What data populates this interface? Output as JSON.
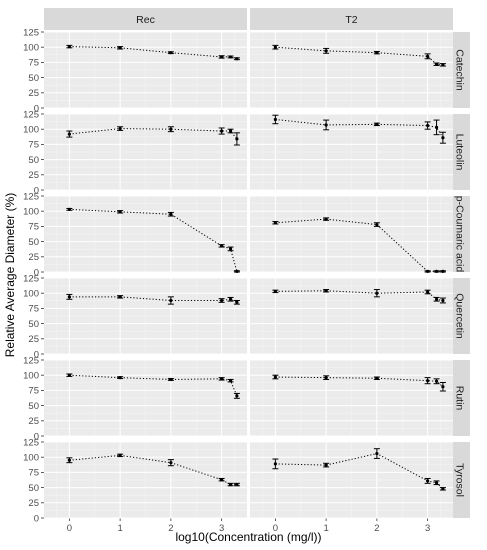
{
  "chart_data": {
    "type": "line",
    "xlabel": "log10(Concentration (mg/l))",
    "ylabel": "Relative Average Diameter (%)",
    "x_ticks": [
      0,
      1,
      2,
      3
    ],
    "y_ticks": [
      0,
      25,
      50,
      75,
      100,
      125
    ],
    "xlim": [
      -0.5,
      3.5
    ],
    "ylim": [
      0,
      125
    ],
    "grid": true,
    "columns": [
      "Rec",
      "T2"
    ],
    "rows": [
      "Catechin",
      "Luteolin",
      "p-Coumaric acid",
      "Quercetin",
      "Rutin",
      "Tyrosol"
    ],
    "x": [
      0,
      1,
      2,
      3,
      3.176,
      3.301
    ],
    "panels": [
      {
        "row": "Catechin",
        "col": "Rec",
        "y": [
          101,
          99,
          91,
          84,
          84,
          81
        ],
        "err": [
          2,
          2,
          1.5,
          2,
          1.5,
          1.5
        ]
      },
      {
        "row": "Catechin",
        "col": "T2",
        "y": [
          100,
          94,
          91,
          85,
          72,
          71
        ],
        "err": [
          3,
          4,
          2,
          4,
          2,
          2
        ]
      },
      {
        "row": "Luteolin",
        "col": "Rec",
        "y": [
          92,
          101,
          100,
          97,
          97,
          84
        ],
        "err": [
          5,
          3,
          4,
          5,
          3,
          10
        ]
      },
      {
        "row": "Luteolin",
        "col": "T2",
        "y": [
          116,
          107,
          108,
          106,
          103,
          86
        ],
        "err": [
          7,
          8,
          2,
          6,
          12,
          9
        ]
      },
      {
        "row": "p-Coumaric acid",
        "col": "Rec",
        "y": [
          103,
          99,
          95,
          43,
          38,
          1
        ],
        "err": [
          1.5,
          2,
          3,
          2,
          3,
          1
        ]
      },
      {
        "row": "p-Coumaric acid",
        "col": "T2",
        "y": [
          81,
          87,
          78,
          1,
          1,
          1
        ],
        "err": [
          2,
          2,
          3,
          1,
          1,
          1
        ]
      },
      {
        "row": "Quercetin",
        "col": "Rec",
        "y": [
          94,
          94,
          88,
          88,
          90,
          85
        ],
        "err": [
          4,
          2,
          6,
          3,
          3,
          3
        ]
      },
      {
        "row": "Quercetin",
        "col": "T2",
        "y": [
          103,
          104,
          100,
          102,
          90,
          88
        ],
        "err": [
          2,
          2,
          6,
          3,
          3,
          4
        ]
      },
      {
        "row": "Rutin",
        "col": "Rec",
        "y": [
          100,
          96,
          93,
          94,
          91,
          66
        ],
        "err": [
          2,
          1.5,
          1.5,
          2,
          2,
          4
        ]
      },
      {
        "row": "Rutin",
        "col": "T2",
        "y": [
          97,
          96,
          95,
          91,
          90,
          81
        ],
        "err": [
          3,
          3,
          2,
          5,
          4,
          7
        ]
      },
      {
        "row": "Tyrosol",
        "col": "Rec",
        "y": [
          95,
          103,
          91,
          63,
          55,
          55
        ],
        "err": [
          4,
          2,
          5,
          2,
          2,
          2
        ]
      },
      {
        "row": "Tyrosol",
        "col": "T2",
        "y": [
          89,
          87,
          106,
          61,
          58,
          48
        ],
        "err": [
          8,
          3,
          8,
          4,
          3,
          2
        ]
      }
    ]
  }
}
